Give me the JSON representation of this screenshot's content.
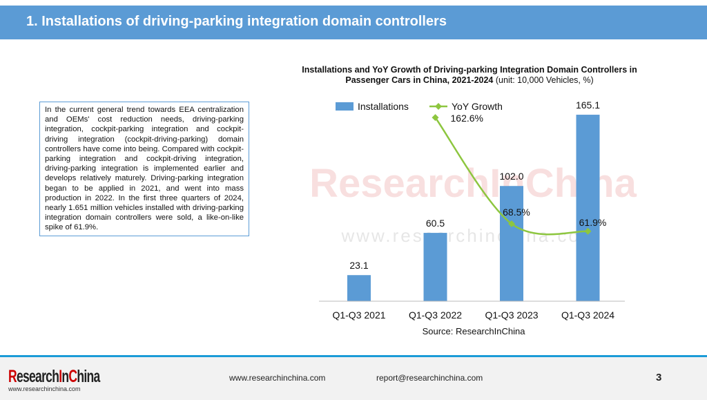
{
  "header": {
    "title": "1. Installations of driving-parking integration domain controllers"
  },
  "body_text": "In the current general trend towards EEA centralization and OEMs' cost reduction needs, driving-parking integration, cockpit-parking integration and cockpit-driving integration (cockpit-driving-parking) domain controllers have come into being. Compared with cockpit-parking integration and cockpit-driving integration, driving-parking integration is implemented earlier and develops relatively maturely. Driving-parking integration began to be applied in 2021, and went into mass production in 2022. In the first three quarters of 2024, nearly 1.651 million vehicles installed with driving-parking integration domain controllers were sold, a like-on-like spike of 61.9%.",
  "chart_data": {
    "type": "bar",
    "title": "Installations and YoY Growth of Driving-parking Integration Domain Controllers in Passenger Cars in China, 2021-2024",
    "subtitle": "(unit: 10,000 Vehicles, %)",
    "categories": [
      "Q1-Q3 2021",
      "Q1-Q3 2022",
      "Q1-Q3 2023",
      "Q1-Q3 2024"
    ],
    "series": [
      {
        "name": "Installations",
        "type": "bar",
        "values": [
          23.1,
          60.5,
          102.0,
          165.1
        ],
        "labels": [
          "23.1",
          "60.5",
          "102.0",
          "165.1"
        ],
        "color": "#5b9bd5"
      },
      {
        "name": "YoY Growth",
        "type": "line",
        "values": [
          null,
          162.6,
          68.5,
          61.9
        ],
        "labels": [
          "",
          "162.6%",
          "68.5%",
          "61.9%"
        ],
        "color": "#8dc63f"
      }
    ],
    "source": "Source: ResearchInChina",
    "watermark": "ResearchInChina www.researchinchina.com"
  },
  "footer": {
    "logo": "ResearchInChina",
    "logo_url": "www.researchinchina.com",
    "website": "www.researchinchina.com",
    "email": "report@researchinchina.com",
    "page": "3"
  }
}
